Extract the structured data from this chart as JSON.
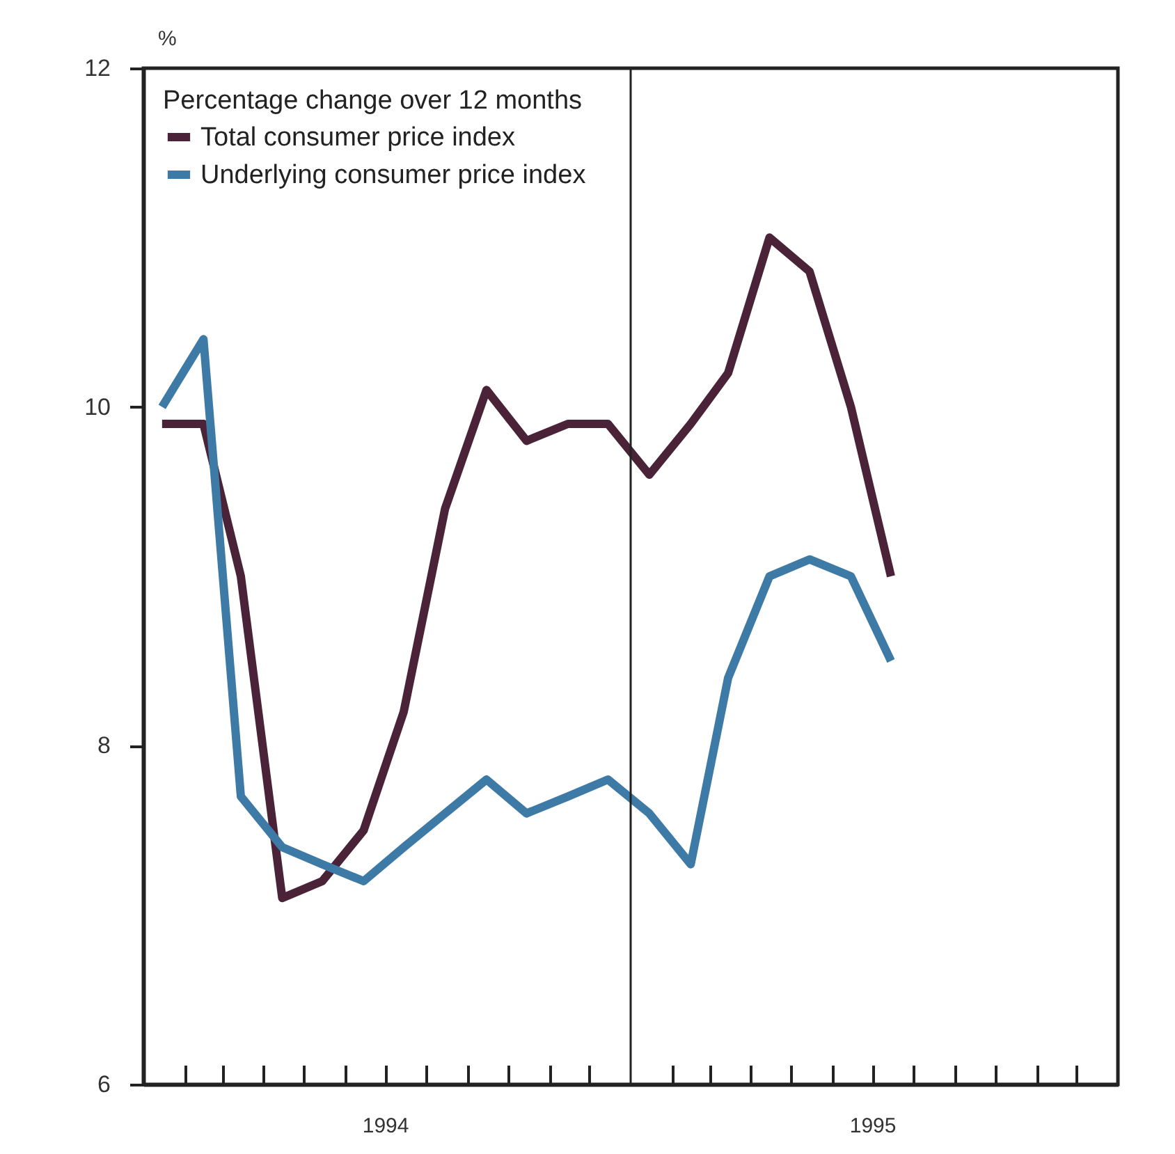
{
  "chart_data": {
    "type": "line",
    "ylabel": "%",
    "legend_title": "Percentage change over 12 months",
    "x": [
      "1994-01-15",
      "1994-02-15",
      "1994-03-15",
      "1994-04-15",
      "1994-05-15",
      "1994-06-15",
      "1994-07-15",
      "1994-08-15",
      "1994-09-15",
      "1994-10-15",
      "1994-11-15",
      "1994-12-15",
      "1995-01-15",
      "1995-02-15",
      "1995-03-15",
      "1995-04-15",
      "1995-05-15",
      "1995-06-15",
      "1995-07-15"
    ],
    "series": [
      {
        "name": "Total consumer price index",
        "color": "#4a2338",
        "values": [
          9.9,
          9.9,
          9.0,
          7.1,
          7.2,
          7.5,
          8.2,
          9.4,
          10.1,
          9.8,
          9.9,
          9.9,
          9.6,
          9.9,
          10.2,
          11.0,
          10.8,
          10.0,
          9.0
        ]
      },
      {
        "name": "Underlying consumer price index",
        "color": "#3e7aa6",
        "values": [
          10.0,
          10.4,
          7.7,
          7.4,
          7.3,
          7.2,
          7.4,
          7.6,
          7.8,
          7.6,
          7.7,
          7.8,
          7.6,
          7.3,
          8.4,
          9.0,
          9.1,
          9.0,
          8.5
        ]
      }
    ],
    "xlim": [
      "1994-01-01",
      "1996-01-01"
    ],
    "xticks": [
      {
        "value": "1994-02-01",
        "label": null
      },
      {
        "value": "1994-03-01",
        "label": null
      },
      {
        "value": "1994-04-01",
        "label": null
      },
      {
        "value": "1994-05-01",
        "label": null
      },
      {
        "value": "1994-06-01",
        "label": null
      },
      {
        "value": "1994-07-01",
        "label": "1994"
      },
      {
        "value": "1994-08-01",
        "label": null
      },
      {
        "value": "1994-09-01",
        "label": null
      },
      {
        "value": "1994-10-01",
        "label": null
      },
      {
        "value": "1994-11-01",
        "label": null
      },
      {
        "value": "1994-12-01",
        "label": null
      },
      {
        "value": "1995-02-01",
        "label": null
      },
      {
        "value": "1995-03-01",
        "label": null
      },
      {
        "value": "1995-04-01",
        "label": null
      },
      {
        "value": "1995-05-01",
        "label": null
      },
      {
        "value": "1995-06-01",
        "label": null
      },
      {
        "value": "1995-07-01",
        "label": "1995"
      },
      {
        "value": "1995-08-01",
        "label": null
      },
      {
        "value": "1995-09-01",
        "label": null
      },
      {
        "value": "1995-10-01",
        "label": null
      },
      {
        "value": "1995-11-01",
        "label": null
      },
      {
        "value": "1995-12-01",
        "label": null
      }
    ],
    "ylim": [
      6,
      12
    ],
    "yticks": [
      6,
      8,
      10,
      12
    ],
    "ref_lines": [
      {
        "axis": "x",
        "value": "1995-01-01"
      }
    ],
    "grid": false,
    "legend": "top left",
    "line_style": "solid"
  }
}
